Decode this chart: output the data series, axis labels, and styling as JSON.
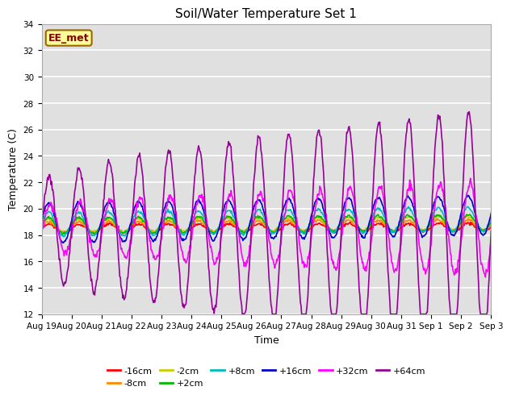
{
  "title": "Soil/Water Temperature Set 1",
  "xlabel": "Time",
  "ylabel": "Temperature (C)",
  "ylim": [
    12,
    34
  ],
  "yticks": [
    12,
    14,
    16,
    18,
    20,
    22,
    24,
    26,
    28,
    30,
    32,
    34
  ],
  "background_color": "#ffffff",
  "plot_bg_color": "#e0e0e0",
  "grid_color": "#ffffff",
  "n_days": 15,
  "pts_per_day": 48,
  "start_day": 19,
  "series_order": [
    "-16cm",
    "-8cm",
    "-2cm",
    "+2cm",
    "+8cm",
    "+16cm",
    "+32cm",
    "+64cm"
  ],
  "series": {
    "-16cm": {
      "color": "#ff0000",
      "lw": 1.2,
      "base": 18.5,
      "amp": 0.3,
      "trend": 0.1,
      "phase": 0.0
    },
    "-8cm": {
      "color": "#ff8800",
      "lw": 1.2,
      "base": 18.6,
      "amp": 0.4,
      "trend": 0.15,
      "phase": 0.1
    },
    "-2cm": {
      "color": "#cccc00",
      "lw": 1.2,
      "base": 18.7,
      "amp": 0.5,
      "trend": 0.2,
      "phase": 0.1
    },
    "+2cm": {
      "color": "#00bb00",
      "lw": 1.2,
      "base": 18.7,
      "amp": 0.6,
      "trend": 0.25,
      "phase": 0.1
    },
    "+8cm": {
      "color": "#00bbbb",
      "lw": 1.2,
      "base": 18.8,
      "amp": 0.9,
      "trend": 0.4,
      "phase": 0.1
    },
    "+16cm": {
      "color": "#0000cc",
      "lw": 1.2,
      "base": 18.9,
      "amp": 1.5,
      "trend": 0.6,
      "phase": 0.1
    },
    "+32cm": {
      "color": "#ff00ff",
      "lw": 1.2,
      "base": 18.5,
      "amp": 3.5,
      "trend": 0.0,
      "phase": -0.3
    },
    "+64cm": {
      "color": "#990099",
      "lw": 1.2,
      "base": 18.5,
      "amp": 9.0,
      "trend": 0.0,
      "phase": 0.0
    }
  },
  "annotation_text": "EE_met",
  "annotation_bg": "#ffff99",
  "annotation_border": "#996600",
  "annotation_text_color": "#880000",
  "title_fontsize": 11,
  "axis_label_fontsize": 9,
  "tick_fontsize": 7.5,
  "legend_fontsize": 8
}
